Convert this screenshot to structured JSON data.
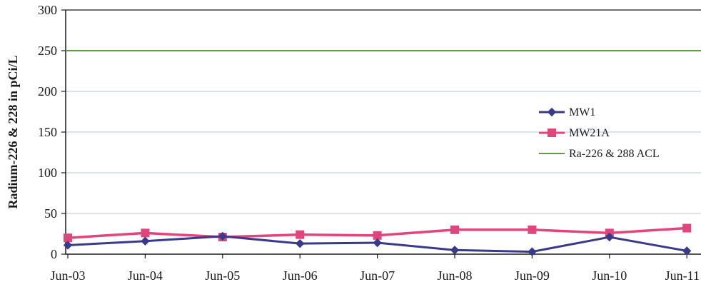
{
  "chart_data": {
    "type": "line",
    "title": "",
    "xlabel": "",
    "ylabel": "Radium-226 & 228 in pCi/L",
    "ylim": [
      0,
      300
    ],
    "yticks": [
      0,
      50,
      100,
      150,
      200,
      250,
      300
    ],
    "categories": [
      "Jun-03",
      "Jun-04",
      "Jun-05",
      "Jun-06",
      "Jun-07",
      "Jun-08",
      "Jun-09",
      "Jun-10",
      "Jun-11"
    ],
    "grid": "horizontal",
    "legend_position": "right",
    "series": [
      {
        "name": "MW1",
        "color": "#3a3a8c",
        "marker": "diamond",
        "values": [
          11,
          16,
          22,
          13,
          14,
          5,
          3,
          21,
          4
        ]
      },
      {
        "name": "MW21A",
        "color": "#e0457b",
        "marker": "square",
        "values": [
          20,
          26,
          21,
          24,
          23,
          30,
          30,
          26,
          32
        ]
      },
      {
        "name": "Ra-226 & 288 ACL",
        "color": "#5aa040",
        "marker": "none",
        "values": [
          250,
          250,
          250,
          250,
          250,
          250,
          250,
          250,
          250
        ]
      }
    ]
  }
}
